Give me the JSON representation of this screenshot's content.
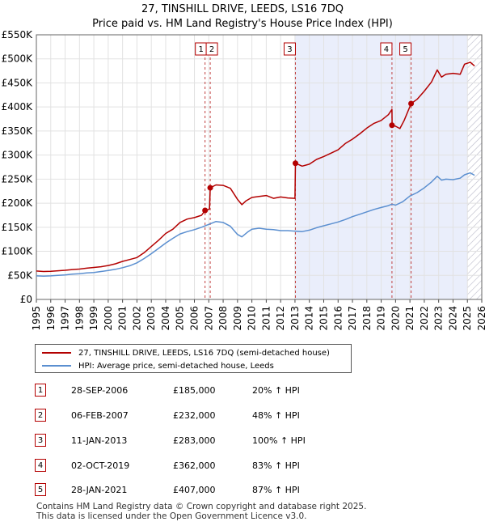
{
  "chart_data": {
    "type": "line",
    "title": "27, TINSHILL DRIVE, LEEDS, LS16 7DQ",
    "subtitle": "Price paid vs. HM Land Registry's House Price Index (HPI)",
    "x_range": [
      1995,
      2026
    ],
    "y_range": [
      0,
      550000
    ],
    "y_ticks": [
      "£0",
      "£50K",
      "£100K",
      "£150K",
      "£200K",
      "£250K",
      "£300K",
      "£350K",
      "£400K",
      "£450K",
      "£500K",
      "£550K"
    ],
    "y_tick_values": [
      0,
      50000,
      100000,
      150000,
      200000,
      250000,
      300000,
      350000,
      400000,
      450000,
      500000,
      550000
    ],
    "x_ticks": [
      "1995",
      "1996",
      "1997",
      "1998",
      "1999",
      "2000",
      "2001",
      "2002",
      "2003",
      "2004",
      "2005",
      "2006",
      "2007",
      "2008",
      "2009",
      "2010",
      "2011",
      "2012",
      "2013",
      "2014",
      "2015",
      "2016",
      "2017",
      "2018",
      "2019",
      "2020",
      "2021",
      "2022",
      "2023",
      "2024",
      "2025",
      "2026"
    ],
    "shaded_from": 2013.03,
    "hatched_from": 2025.0,
    "series": [
      {
        "name": "27, TINSHILL DRIVE, LEEDS, LS16 7DQ (semi-detached house)",
        "color": "#b30000",
        "points": [
          [
            1995.0,
            59000
          ],
          [
            1995.5,
            58000
          ],
          [
            1996.0,
            58500
          ],
          [
            1996.5,
            59500
          ],
          [
            1997.0,
            60500
          ],
          [
            1997.5,
            62000
          ],
          [
            1998.0,
            63000
          ],
          [
            1998.5,
            65000
          ],
          [
            1999.0,
            66500
          ],
          [
            1999.5,
            68000
          ],
          [
            2000.0,
            70500
          ],
          [
            2000.5,
            74000
          ],
          [
            2001.0,
            79000
          ],
          [
            2001.5,
            83000
          ],
          [
            2002.0,
            87000
          ],
          [
            2002.5,
            97000
          ],
          [
            2003.0,
            110000
          ],
          [
            2003.5,
            123000
          ],
          [
            2004.0,
            137000
          ],
          [
            2004.5,
            146000
          ],
          [
            2005.0,
            160000
          ],
          [
            2005.5,
            167000
          ],
          [
            2006.0,
            170000
          ],
          [
            2006.5,
            175000
          ],
          [
            2006.74,
            185000
          ],
          [
            2006.9,
            186000
          ],
          [
            2007.05,
            188000
          ],
          [
            2007.1,
            232000
          ],
          [
            2007.5,
            238000
          ],
          [
            2008.0,
            237000
          ],
          [
            2008.5,
            231000
          ],
          [
            2009.0,
            208000
          ],
          [
            2009.3,
            197000
          ],
          [
            2009.6,
            205000
          ],
          [
            2010.0,
            212000
          ],
          [
            2010.5,
            214000
          ],
          [
            2011.0,
            216000
          ],
          [
            2011.5,
            210000
          ],
          [
            2012.0,
            213000
          ],
          [
            2012.5,
            211000
          ],
          [
            2013.0,
            210000
          ],
          [
            2013.03,
            283000
          ],
          [
            2013.5,
            277000
          ],
          [
            2014.0,
            281000
          ],
          [
            2014.5,
            291000
          ],
          [
            2015.0,
            297000
          ],
          [
            2015.5,
            304000
          ],
          [
            2016.0,
            311000
          ],
          [
            2016.5,
            324000
          ],
          [
            2017.0,
            333000
          ],
          [
            2017.5,
            344000
          ],
          [
            2018.0,
            356000
          ],
          [
            2018.5,
            366000
          ],
          [
            2019.0,
            372000
          ],
          [
            2019.5,
            384000
          ],
          [
            2019.75,
            395000
          ],
          [
            2019.76,
            362000
          ],
          [
            2020.0,
            360000
          ],
          [
            2020.3,
            355000
          ],
          [
            2020.6,
            372000
          ],
          [
            2021.08,
            407000
          ],
          [
            2021.5,
            416000
          ],
          [
            2022.0,
            433000
          ],
          [
            2022.5,
            452000
          ],
          [
            2022.9,
            477000
          ],
          [
            2023.2,
            462000
          ],
          [
            2023.5,
            468000
          ],
          [
            2024.0,
            470000
          ],
          [
            2024.5,
            468000
          ],
          [
            2024.8,
            489000
          ],
          [
            2025.2,
            493000
          ],
          [
            2025.5,
            485000
          ]
        ]
      },
      {
        "name": "HPI: Average price, semi-detached house, Leeds",
        "color": "#5b8fd0",
        "points": [
          [
            1995.0,
            49000
          ],
          [
            1995.5,
            48500
          ],
          [
            1996.0,
            49000
          ],
          [
            1996.5,
            50000
          ],
          [
            1997.0,
            51000
          ],
          [
            1997.5,
            52500
          ],
          [
            1998.0,
            53500
          ],
          [
            1998.5,
            55000
          ],
          [
            1999.0,
            56000
          ],
          [
            1999.5,
            58000
          ],
          [
            2000.0,
            60000
          ],
          [
            2000.5,
            62500
          ],
          [
            2001.0,
            66000
          ],
          [
            2001.5,
            70000
          ],
          [
            2002.0,
            76000
          ],
          [
            2002.5,
            85000
          ],
          [
            2003.0,
            95000
          ],
          [
            2003.5,
            106000
          ],
          [
            2004.0,
            117000
          ],
          [
            2004.5,
            127000
          ],
          [
            2005.0,
            136000
          ],
          [
            2005.5,
            141000
          ],
          [
            2006.0,
            145000
          ],
          [
            2006.5,
            150000
          ],
          [
            2007.0,
            156000
          ],
          [
            2007.5,
            162000
          ],
          [
            2008.0,
            160000
          ],
          [
            2008.5,
            152000
          ],
          [
            2009.0,
            135000
          ],
          [
            2009.3,
            130000
          ],
          [
            2009.7,
            140000
          ],
          [
            2010.0,
            146000
          ],
          [
            2010.5,
            148000
          ],
          [
            2011.0,
            146000
          ],
          [
            2011.5,
            145000
          ],
          [
            2012.0,
            143000
          ],
          [
            2012.5,
            143000
          ],
          [
            2013.0,
            142000
          ],
          [
            2013.5,
            141000
          ],
          [
            2014.0,
            144000
          ],
          [
            2014.5,
            149000
          ],
          [
            2015.0,
            153000
          ],
          [
            2015.5,
            157000
          ],
          [
            2016.0,
            161000
          ],
          [
            2016.5,
            166000
          ],
          [
            2017.0,
            172000
          ],
          [
            2017.5,
            177000
          ],
          [
            2018.0,
            182000
          ],
          [
            2018.5,
            187000
          ],
          [
            2019.0,
            191000
          ],
          [
            2019.5,
            195000
          ],
          [
            2019.75,
            198000
          ],
          [
            2020.0,
            196000
          ],
          [
            2020.5,
            203000
          ],
          [
            2021.0,
            215000
          ],
          [
            2021.5,
            222000
          ],
          [
            2022.0,
            232000
          ],
          [
            2022.5,
            244000
          ],
          [
            2022.9,
            256000
          ],
          [
            2023.2,
            248000
          ],
          [
            2023.5,
            250000
          ],
          [
            2024.0,
            249000
          ],
          [
            2024.5,
            252000
          ],
          [
            2024.8,
            259000
          ],
          [
            2025.2,
            263000
          ],
          [
            2025.5,
            258000
          ]
        ]
      }
    ],
    "markers": [
      {
        "label": "1",
        "x": 2006.74,
        "y": 185000
      },
      {
        "label": "2",
        "x": 2007.1,
        "y": 232000
      },
      {
        "label": "3",
        "x": 2013.03,
        "y": 283000
      },
      {
        "label": "4",
        "x": 2019.75,
        "y": 362000
      },
      {
        "label": "5",
        "x": 2021.08,
        "y": 407000
      }
    ]
  },
  "legend": {
    "items": [
      {
        "label": "27, TINSHILL DRIVE, LEEDS, LS16 7DQ (semi-detached house)",
        "color": "#b30000"
      },
      {
        "label": "HPI: Average price, semi-detached house, Leeds",
        "color": "#5b8fd0"
      }
    ]
  },
  "sales": [
    {
      "num": "1",
      "date": "28-SEP-2006",
      "price": "£185,000",
      "hpi": "20% ↑ HPI"
    },
    {
      "num": "2",
      "date": "06-FEB-2007",
      "price": "£232,000",
      "hpi": "48% ↑ HPI"
    },
    {
      "num": "3",
      "date": "11-JAN-2013",
      "price": "£283,000",
      "hpi": "100% ↑ HPI"
    },
    {
      "num": "4",
      "date": "02-OCT-2019",
      "price": "£362,000",
      "hpi": "83% ↑ HPI"
    },
    {
      "num": "5",
      "date": "28-JAN-2021",
      "price": "£407,000",
      "hpi": "87% ↑ HPI"
    }
  ],
  "footer": {
    "line1": "Contains HM Land Registry data © Crown copyright and database right 2025.",
    "line2": "This data is licensed under the Open Government Licence v3.0."
  }
}
